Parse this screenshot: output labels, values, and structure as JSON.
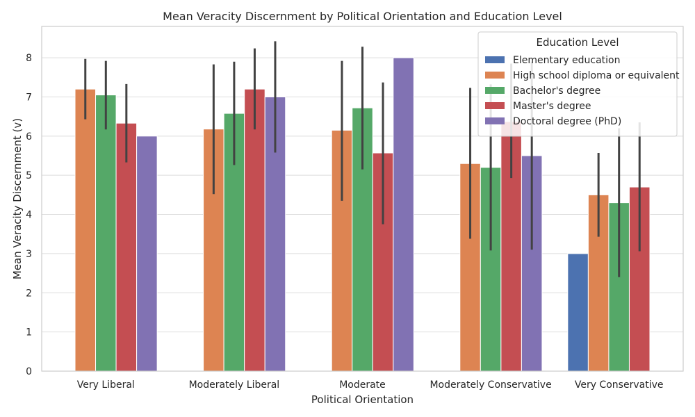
{
  "chart_data": {
    "type": "bar",
    "title": "Mean Veracity Discernment by Political Orientation and Education Level",
    "xlabel": "Political Orientation",
    "ylabel": "Mean Veracity Discernment (v)",
    "ylim": [
      0,
      8.8
    ],
    "yticks": [
      "0",
      "1",
      "2",
      "3",
      "4",
      "5",
      "6",
      "7",
      "8"
    ],
    "grid": true,
    "legend_placement": "top-right",
    "legend_title": "Education Level",
    "categories": [
      "Very Liberal",
      "Moderately Liberal",
      "Moderate",
      "Moderately Conservative",
      "Very Conservative"
    ],
    "series": [
      {
        "name": "Elementary education",
        "color": "#4c72b0",
        "values": [
          null,
          null,
          null,
          null,
          3.0
        ],
        "err_low": [
          null,
          null,
          null,
          null,
          null
        ],
        "err_high": [
          null,
          null,
          null,
          null,
          null
        ]
      },
      {
        "name": "High school diploma or equivalent",
        "color": "#dd8452",
        "values": [
          7.2,
          6.18,
          6.15,
          5.3,
          4.5
        ],
        "err_low": [
          6.43,
          4.52,
          4.35,
          3.38,
          3.43
        ],
        "err_high": [
          7.97,
          7.83,
          7.92,
          7.23,
          5.57
        ]
      },
      {
        "name": "Bachelor's degree",
        "color": "#55a868",
        "values": [
          7.05,
          6.58,
          6.72,
          5.2,
          4.3
        ],
        "err_low": [
          6.17,
          5.26,
          5.15,
          3.08,
          2.4
        ],
        "err_high": [
          7.92,
          7.9,
          8.28,
          7.32,
          6.2
        ]
      },
      {
        "name": "Master's degree",
        "color": "#c44e52",
        "values": [
          6.33,
          7.2,
          5.57,
          6.37,
          4.7
        ],
        "err_low": [
          5.33,
          6.17,
          3.75,
          4.93,
          3.06
        ],
        "err_high": [
          7.33,
          8.24,
          7.37,
          7.85,
          6.35
        ]
      },
      {
        "name": "Doctoral degree (PhD)",
        "color": "#8172b3",
        "values": [
          6.0,
          7.0,
          8.0,
          5.5,
          null
        ],
        "err_low": [
          null,
          5.58,
          null,
          3.1,
          null
        ],
        "err_high": [
          null,
          8.42,
          null,
          7.9,
          null
        ]
      }
    ]
  }
}
